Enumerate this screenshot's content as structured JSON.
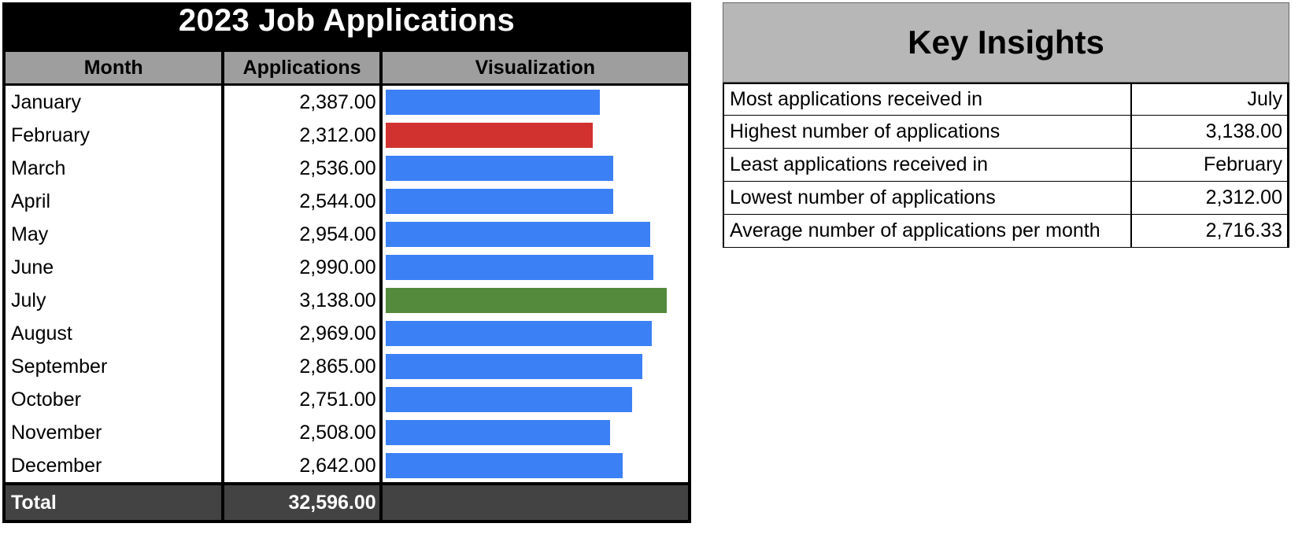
{
  "main": {
    "title": "2023 Job Applications",
    "headers": {
      "month": "Month",
      "applications": "Applications",
      "visualization": "Visualization"
    },
    "rows": [
      {
        "month": "January",
        "applications": "2,387.00",
        "value": 2387,
        "color": "#3c80f6"
      },
      {
        "month": "February",
        "applications": "2,312.00",
        "value": 2312,
        "color": "#d1322f"
      },
      {
        "month": "March",
        "applications": "2,536.00",
        "value": 2536,
        "color": "#3c80f6"
      },
      {
        "month": "April",
        "applications": "2,544.00",
        "value": 2544,
        "color": "#3c80f6"
      },
      {
        "month": "May",
        "applications": "2,954.00",
        "value": 2954,
        "color": "#3c80f6"
      },
      {
        "month": "June",
        "applications": "2,990.00",
        "value": 2990,
        "color": "#3c80f6"
      },
      {
        "month": "July",
        "applications": "3,138.00",
        "value": 3138,
        "color": "#538a3c"
      },
      {
        "month": "August",
        "applications": "2,969.00",
        "value": 2969,
        "color": "#3c80f6"
      },
      {
        "month": "September",
        "applications": "2,865.00",
        "value": 2865,
        "color": "#3c80f6"
      },
      {
        "month": "October",
        "applications": "2,751.00",
        "value": 2751,
        "color": "#3c80f6"
      },
      {
        "month": "November",
        "applications": "2,508.00",
        "value": 2508,
        "color": "#3c80f6"
      },
      {
        "month": "December",
        "applications": "2,642.00",
        "value": 2642,
        "color": "#3c80f6"
      }
    ],
    "total": {
      "label": "Total",
      "value": "32,596.00"
    },
    "bar_max": 3138
  },
  "insights": {
    "title": "Key Insights",
    "rows": [
      {
        "label": "Most applications received in",
        "value": "July"
      },
      {
        "label": "Highest number of applications",
        "value": "3,138.00"
      },
      {
        "label": "Least applications received in",
        "value": "February"
      },
      {
        "label": "Lowest number of applications",
        "value": "2,312.00"
      },
      {
        "label": "Average number of applications per month",
        "value": "2,716.33"
      }
    ]
  }
}
